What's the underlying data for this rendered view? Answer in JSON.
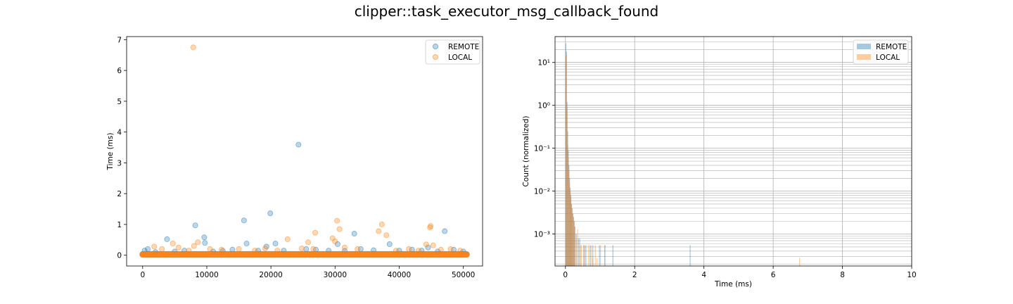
{
  "figure": {
    "title": "clipper::task_executor_msg_callback_found"
  },
  "chart_data": [
    {
      "type": "scatter",
      "xlabel": "",
      "ylabel": "Time (ms)",
      "xlim": [
        -2500,
        53000
      ],
      "ylim": [
        -0.35,
        7.1
      ],
      "xticks": [
        0,
        10000,
        20000,
        30000,
        40000,
        50000
      ],
      "yticks": [
        0,
        1,
        2,
        3,
        4,
        5,
        6,
        7
      ],
      "grid": false,
      "legend_position": "top-right",
      "series": [
        {
          "name": "REMOTE",
          "color": "#1f77b4",
          "baseline": {
            "x_range": [
              0,
              50500
            ],
            "y_band": [
              0.0,
              0.06
            ]
          },
          "points": [
            [
              300,
              0.15
            ],
            [
              800,
              0.2
            ],
            [
              2000,
              0.1
            ],
            [
              3800,
              0.52
            ],
            [
              5000,
              0.12
            ],
            [
              6500,
              0.15
            ],
            [
              8200,
              0.97
            ],
            [
              9600,
              0.58
            ],
            [
              9700,
              0.4
            ],
            [
              11000,
              0.12
            ],
            [
              12500,
              0.14
            ],
            [
              14000,
              0.18
            ],
            [
              15800,
              1.13
            ],
            [
              16200,
              0.38
            ],
            [
              18000,
              0.15
            ],
            [
              19300,
              0.28
            ],
            [
              19900,
              1.36
            ],
            [
              20700,
              0.38
            ],
            [
              22000,
              0.15
            ],
            [
              24300,
              3.59
            ],
            [
              25500,
              0.2
            ],
            [
              27000,
              0.18
            ],
            [
              29000,
              0.15
            ],
            [
              30400,
              0.36
            ],
            [
              31500,
              0.14
            ],
            [
              33000,
              0.7
            ],
            [
              34000,
              0.2
            ],
            [
              36000,
              0.16
            ],
            [
              38500,
              0.36
            ],
            [
              40000,
              0.15
            ],
            [
              42000,
              0.18
            ],
            [
              43500,
              0.15
            ],
            [
              44500,
              0.25
            ],
            [
              46000,
              0.12
            ],
            [
              47100,
              0.78
            ],
            [
              48500,
              0.18
            ],
            [
              50000,
              0.12
            ]
          ]
        },
        {
          "name": "LOCAL",
          "color": "#ff7f0e",
          "baseline": {
            "x_range": [
              0,
              50500
            ],
            "y_band": [
              0.0,
              0.04
            ]
          },
          "points": [
            [
              1800,
              0.28
            ],
            [
              3000,
              0.2
            ],
            [
              4700,
              0.38
            ],
            [
              5600,
              0.25
            ],
            [
              7200,
              0.15
            ],
            [
              7900,
              6.75
            ],
            [
              8000,
              0.3
            ],
            [
              8600,
              0.42
            ],
            [
              10500,
              0.2
            ],
            [
              12300,
              0.18
            ],
            [
              15000,
              0.2
            ],
            [
              17500,
              0.15
            ],
            [
              19100,
              0.22
            ],
            [
              21000,
              0.15
            ],
            [
              22600,
              0.52
            ],
            [
              24800,
              0.22
            ],
            [
              25800,
              0.42
            ],
            [
              26600,
              0.2
            ],
            [
              26900,
              0.73
            ],
            [
              29600,
              0.55
            ],
            [
              30000,
              0.45
            ],
            [
              30300,
              1.12
            ],
            [
              30700,
              0.85
            ],
            [
              31500,
              0.25
            ],
            [
              33500,
              0.2
            ],
            [
              36800,
              0.78
            ],
            [
              37300,
              1.0
            ],
            [
              38000,
              0.65
            ],
            [
              39500,
              0.15
            ],
            [
              41500,
              0.2
            ],
            [
              43000,
              0.15
            ],
            [
              44200,
              0.35
            ],
            [
              44800,
              0.9
            ],
            [
              44900,
              0.95
            ],
            [
              45300,
              0.32
            ],
            [
              46500,
              0.18
            ],
            [
              48000,
              0.2
            ],
            [
              49500,
              0.15
            ]
          ]
        }
      ]
    },
    {
      "type": "bar",
      "subtype": "histogram",
      "xlabel": "Time (ms)",
      "ylabel": "Count (normalized)",
      "xlim": [
        -0.3,
        10
      ],
      "ylim": [
        0.00018,
        40
      ],
      "yscale": "log",
      "xticks": [
        0,
        2,
        4,
        6,
        8,
        10
      ],
      "yticks": [
        {
          "value": 0.001,
          "label": "10⁻³"
        },
        {
          "value": 0.01,
          "label": "10⁻²"
        },
        {
          "value": 0.1,
          "label": "10⁻¹"
        },
        {
          "value": 1,
          "label": "10⁰"
        },
        {
          "value": 10,
          "label": "10¹"
        }
      ],
      "grid": true,
      "legend_position": "top-right",
      "bin_width": 0.018,
      "series": [
        {
          "name": "REMOTE",
          "color": "#1f77b4",
          "bins": [
            [
              0.0,
              28
            ],
            [
              0.018,
              18
            ],
            [
              0.036,
              1.2
            ],
            [
              0.054,
              0.25
            ],
            [
              0.072,
              0.09
            ],
            [
              0.09,
              0.04
            ],
            [
              0.108,
              0.02
            ],
            [
              0.126,
              0.012
            ],
            [
              0.144,
              0.008
            ],
            [
              0.162,
              0.005
            ],
            [
              0.18,
              0.004
            ],
            [
              0.2,
              0.003
            ],
            [
              0.22,
              0.0025
            ],
            [
              0.24,
              0.002
            ],
            [
              0.26,
              0.0015
            ],
            [
              0.3,
              0.001
            ],
            [
              0.36,
              0.0008
            ],
            [
              0.4,
              0.0008
            ],
            [
              0.52,
              0.00055
            ],
            [
              0.58,
              0.00055
            ],
            [
              0.7,
              0.00055
            ],
            [
              0.78,
              0.00055
            ],
            [
              0.97,
              0.00055
            ],
            [
              1.13,
              0.00055
            ],
            [
              1.36,
              0.00055
            ],
            [
              3.59,
              0.00055
            ]
          ]
        },
        {
          "name": "LOCAL",
          "color": "#ff7f0e",
          "bins": [
            [
              0.0,
              14
            ],
            [
              0.018,
              15
            ],
            [
              0.036,
              0.8
            ],
            [
              0.054,
              0.12
            ],
            [
              0.072,
              0.06
            ],
            [
              0.09,
              0.03
            ],
            [
              0.108,
              0.015
            ],
            [
              0.126,
              0.01
            ],
            [
              0.144,
              0.007
            ],
            [
              0.162,
              0.005
            ],
            [
              0.18,
              0.004
            ],
            [
              0.2,
              0.003
            ],
            [
              0.22,
              0.0025
            ],
            [
              0.24,
              0.002
            ],
            [
              0.26,
              0.0015
            ],
            [
              0.3,
              0.0008
            ],
            [
              0.34,
              0.0013
            ],
            [
              0.42,
              0.00055
            ],
            [
              0.45,
              0.00055
            ],
            [
              0.52,
              0.00055
            ],
            [
              0.55,
              0.00055
            ],
            [
              0.65,
              0.00055
            ],
            [
              0.73,
              0.00055
            ],
            [
              0.78,
              0.00028
            ],
            [
              0.85,
              0.00055
            ],
            [
              0.9,
              0.00028
            ],
            [
              1.0,
              0.00055
            ],
            [
              1.12,
              0.00055
            ],
            [
              6.75,
              0.00028
            ]
          ]
        }
      ]
    }
  ]
}
